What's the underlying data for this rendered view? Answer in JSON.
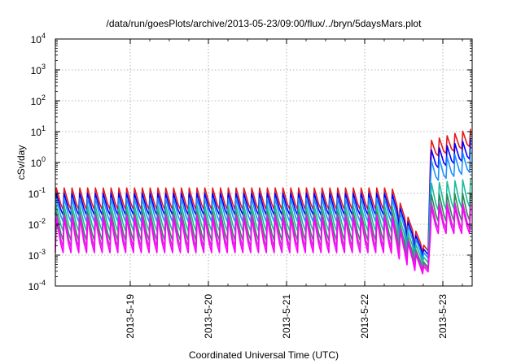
{
  "chart_data": {
    "type": "line",
    "title": "/data/run/goesPlots/archive/2013-05-23/09:00/flux/../bryn/5daysMars.plot",
    "xlabel": "Coordinated Universal Time (UTC)",
    "ylabel": "cSv/day",
    "x_axis": {
      "type": "date",
      "range": [
        "2013-05-18T01:00",
        "2013-05-23T09:00"
      ],
      "ticks": [
        "2013-5-19",
        "2013-5-20",
        "2013-5-21",
        "2013-5-22",
        "2013-5-23"
      ]
    },
    "y_axis": {
      "scale": "log",
      "range": [
        0.0001,
        10000
      ],
      "ticks": [
        {
          "base": "10",
          "exp": "-4"
        },
        {
          "base": "10",
          "exp": "-3"
        },
        {
          "base": "10",
          "exp": "-2"
        },
        {
          "base": "10",
          "exp": "-1"
        },
        {
          "base": "10",
          "exp": "0"
        },
        {
          "base": "10",
          "exp": "1"
        },
        {
          "base": "10",
          "exp": "2"
        },
        {
          "base": "10",
          "exp": "3"
        },
        {
          "base": "10",
          "exp": "4"
        }
      ]
    },
    "grid": true,
    "pattern": {
      "sawtooth_period_hours": 2.4,
      "dip_window": [
        "2013-05-22T08:00",
        "2013-05-22T18:00"
      ],
      "jump_at": "2013-05-22T18:00"
    },
    "series": [
      {
        "color": "#e41a1c",
        "peak": 0.15,
        "floor": 0.03,
        "dip_min": 0.0012,
        "after_floor": 1.2,
        "after_peak": 4.5,
        "end_peak": 13
      },
      {
        "color": "#0000ff",
        "peak": 0.1,
        "floor": 0.02,
        "dip_min": 0.0009,
        "after_floor": 0.5,
        "after_peak": 2.2,
        "end_peak": 6
      },
      {
        "color": "#1e90ff",
        "peak": 0.07,
        "floor": 0.012,
        "dip_min": 0.0007,
        "after_floor": 0.2,
        "after_peak": 1.0,
        "end_peak": 2.5
      },
      {
        "color": "#1abc9c",
        "peak": 0.04,
        "floor": 0.006,
        "dip_min": 0.0005,
        "after_floor": 0.025,
        "after_peak": 0.2,
        "end_peak": 0.3
      },
      {
        "color": "#2e8b57",
        "peak": 0.025,
        "floor": 0.003,
        "dip_min": 0.00035,
        "after_floor": 0.012,
        "after_peak": 0.09,
        "end_peak": 0.1
      },
      {
        "color": "#cc33cc",
        "peak": 0.02,
        "floor": 0.0018,
        "dip_min": 0.0003,
        "after_floor": 0.007,
        "after_peak": 0.05,
        "end_peak": 0.05
      },
      {
        "color": "#ff00ff",
        "peak": 0.016,
        "floor": 0.0012,
        "dip_min": 0.00025,
        "after_floor": 0.005,
        "after_peak": 0.035,
        "end_peak": 0.035
      }
    ]
  }
}
